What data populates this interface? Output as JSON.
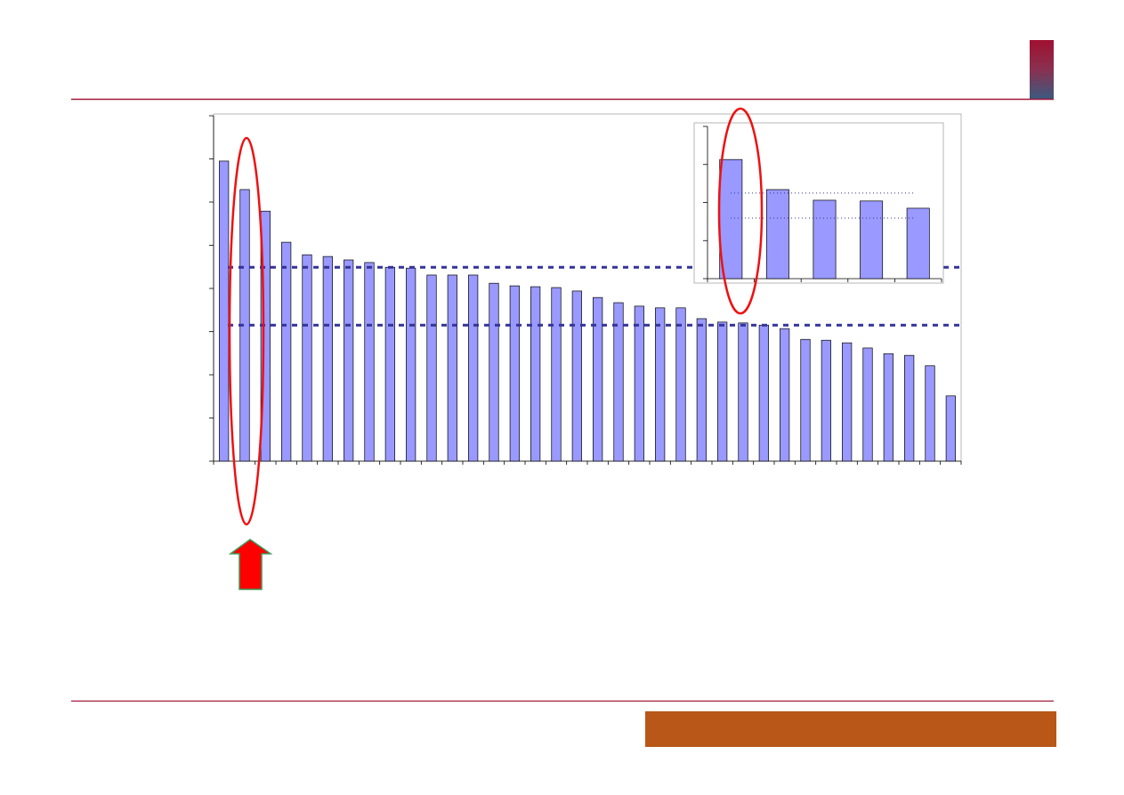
{
  "chart_data": [
    {
      "type": "bar",
      "categories": [
        null,
        null,
        null,
        null,
        null,
        null,
        null,
        null,
        null,
        null,
        null,
        null,
        null,
        null,
        null,
        null,
        null,
        null,
        null,
        null,
        null,
        null,
        null,
        null,
        null,
        null,
        null,
        null,
        null,
        null,
        null,
        null,
        null,
        null,
        null,
        null
      ],
      "values": [
        6.95,
        6.29,
        5.79,
        5.07,
        4.78,
        4.74,
        4.66,
        4.6,
        4.49,
        4.47,
        4.31,
        4.31,
        4.31,
        4.12,
        4.06,
        4.04,
        4.02,
        3.94,
        3.79,
        3.67,
        3.59,
        3.55,
        3.55,
        3.3,
        3.22,
        3.2,
        3.15,
        3.07,
        2.82,
        2.8,
        2.74,
        2.62,
        2.49,
        2.45,
        2.21,
        1.51
      ],
      "color": "#9999ff",
      "ylim": [
        0,
        8
      ],
      "yticks": [
        0,
        1,
        2,
        3,
        4,
        5,
        6,
        7,
        8
      ],
      "hlines": [
        4.49,
        3.15
      ]
    },
    {
      "type": "bar",
      "categories": [
        null,
        null,
        null,
        null,
        null
      ],
      "values": [
        3.13,
        2.34,
        2.06,
        2.04,
        1.85
      ],
      "color": "#9999ff",
      "ylim": [
        0,
        4
      ],
      "yticks": [
        0,
        1,
        2,
        3,
        4
      ],
      "hlines": [
        2.25,
        1.59
      ]
    }
  ]
}
